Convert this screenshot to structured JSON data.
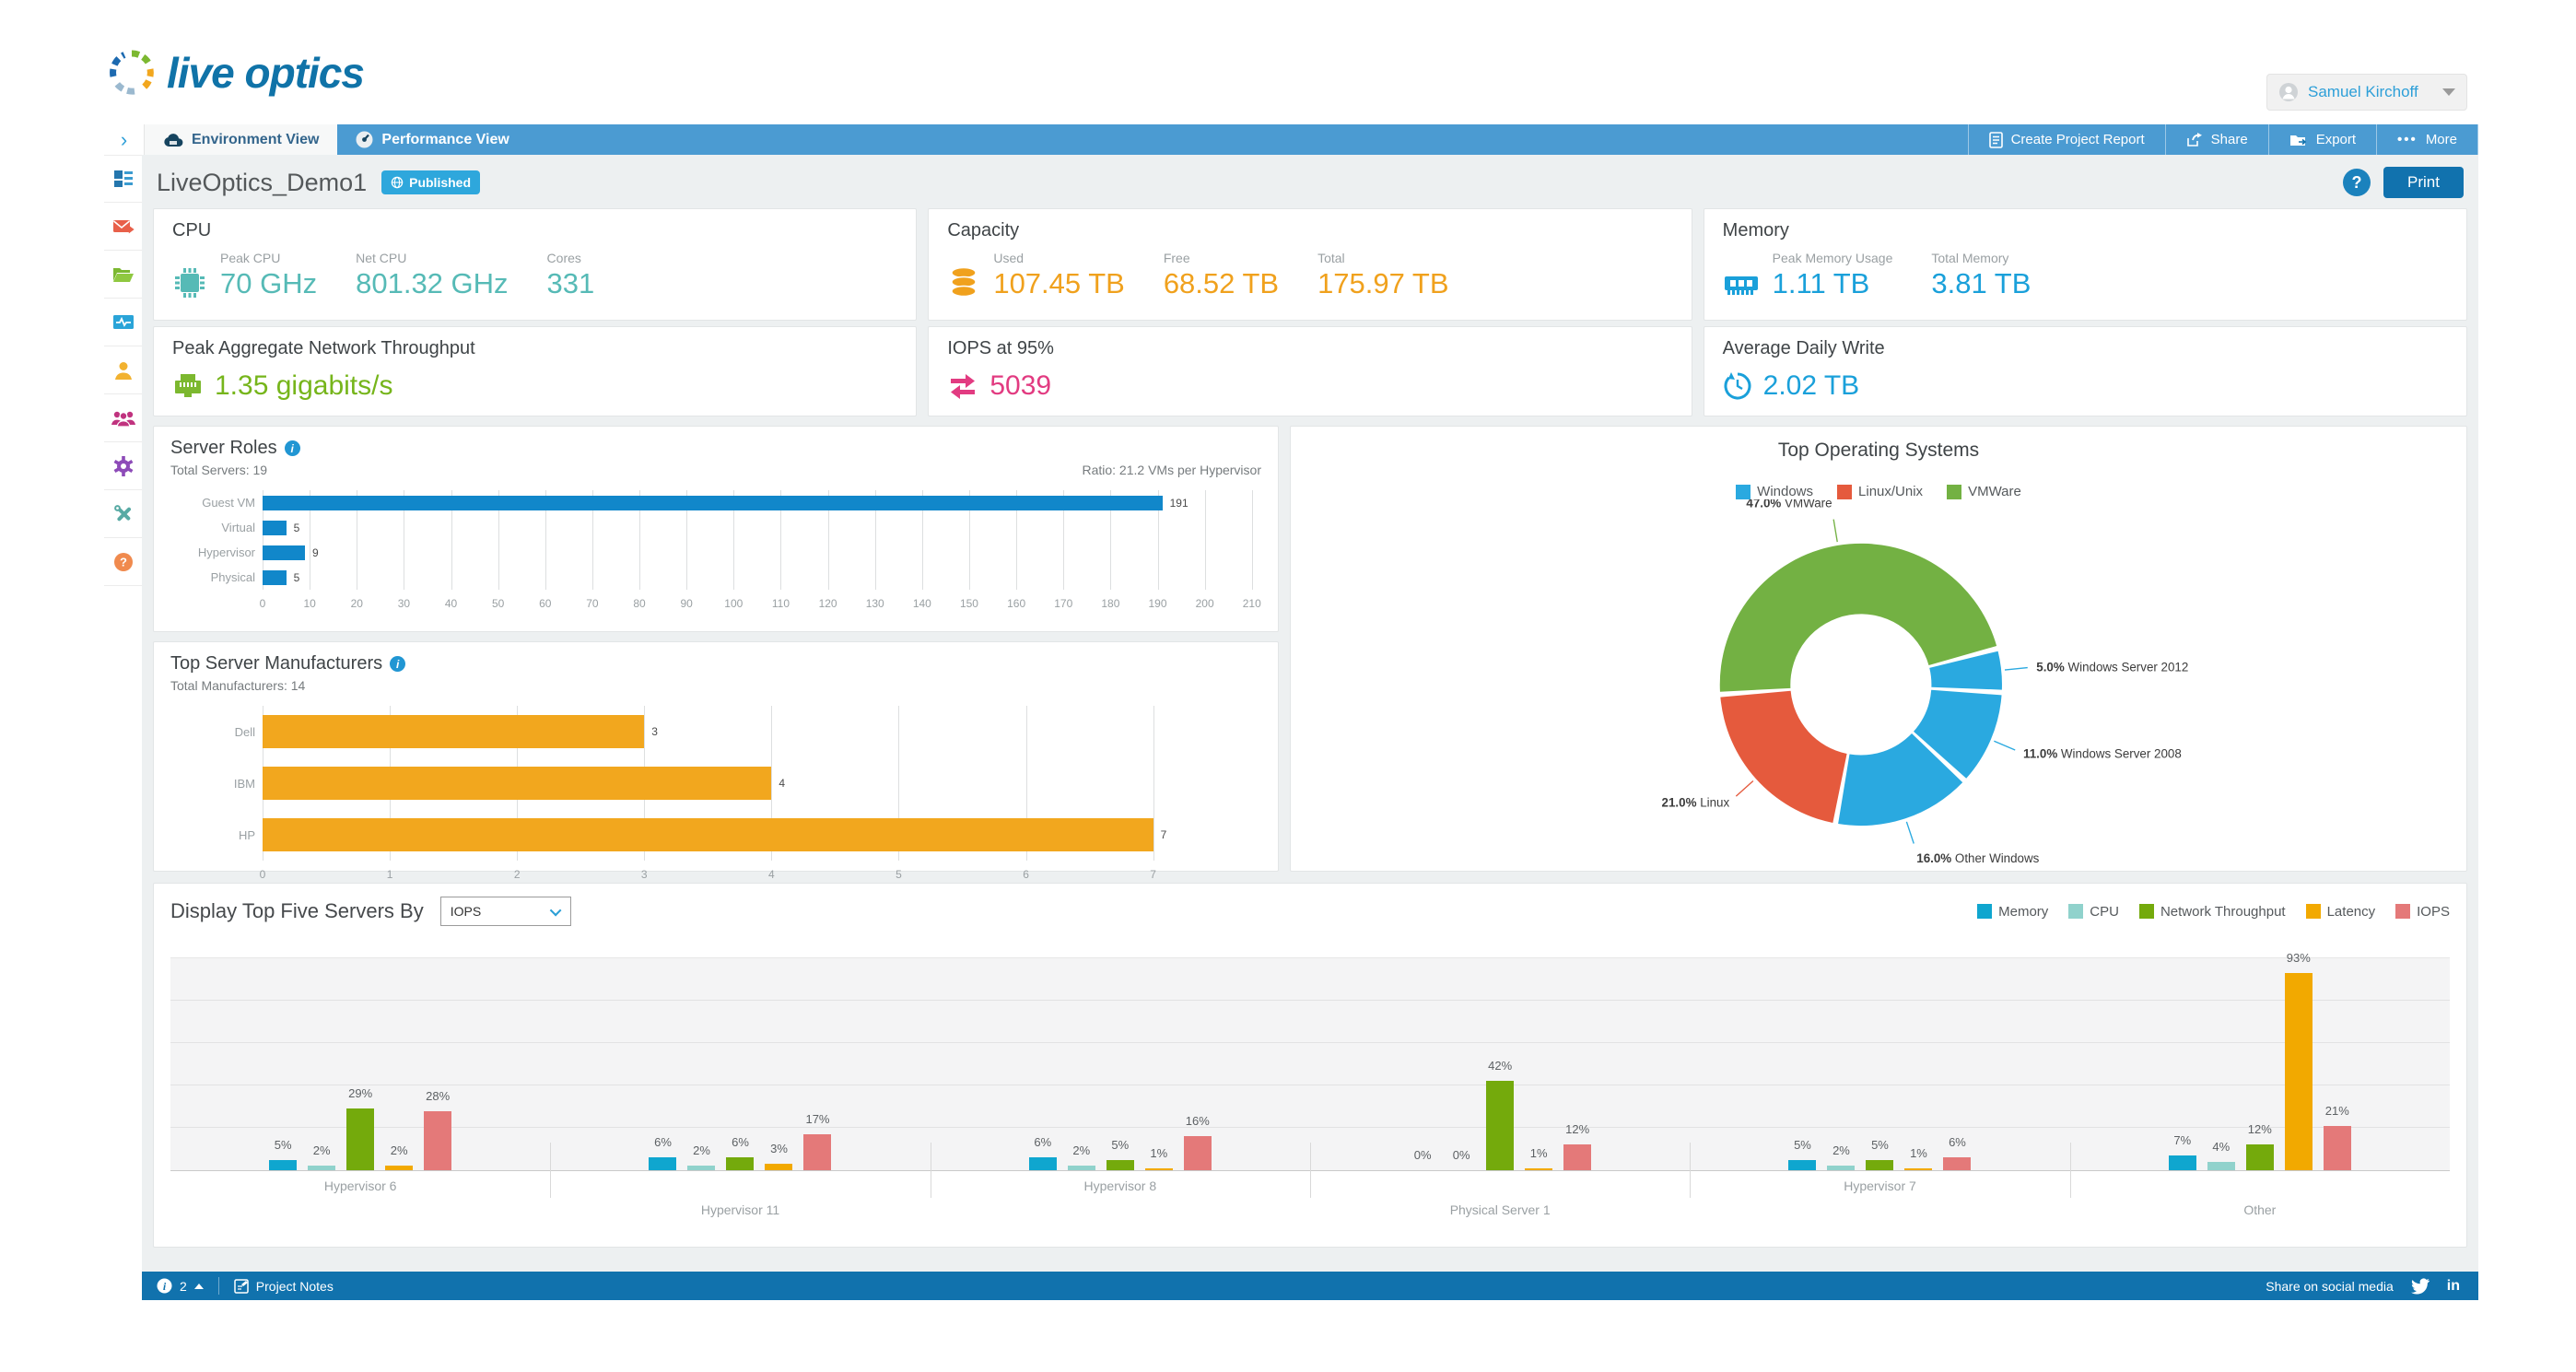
{
  "header": {
    "brand": "live optics",
    "user_name": "Samuel Kirchoff"
  },
  "tabbar": {
    "tabs": [
      {
        "label": "Environment View"
      },
      {
        "label": "Performance View"
      }
    ],
    "actions": [
      {
        "label": "Create Project Report"
      },
      {
        "label": "Share"
      },
      {
        "label": "Export"
      },
      {
        "label": "More"
      }
    ]
  },
  "titlebar": {
    "project_name": "LiveOptics_Demo1",
    "status": "Published",
    "help_label": "?",
    "print_label": "Print"
  },
  "sidebar": {
    "icons": [
      "dashboard",
      "mail",
      "projects-folder",
      "activity-monitor",
      "user",
      "team",
      "settings",
      "tools",
      "help"
    ]
  },
  "cards": {
    "cpu": {
      "title": "CPU",
      "metrics": [
        {
          "label": "Peak CPU",
          "value": "70 GHz"
        },
        {
          "label": "Net CPU",
          "value": "801.32 GHz"
        },
        {
          "label": "Cores",
          "value": "331"
        }
      ]
    },
    "capacity": {
      "title": "Capacity",
      "metrics": [
        {
          "label": "Used",
          "value": "107.45 TB"
        },
        {
          "label": "Free",
          "value": "68.52 TB"
        },
        {
          "label": "Total",
          "value": "175.97 TB"
        }
      ]
    },
    "memory": {
      "title": "Memory",
      "metrics": [
        {
          "label": "Peak Memory Usage",
          "value": "1.11 TB"
        },
        {
          "label": "Total Memory",
          "value": "3.81 TB"
        }
      ]
    },
    "network": {
      "title": "Peak Aggregate Network Throughput",
      "value": "1.35 gigabits/s"
    },
    "iops": {
      "title": "IOPS at 95%",
      "value": "5039"
    },
    "daily_write": {
      "title": "Average Daily Write",
      "value": "2.02 TB"
    }
  },
  "chart_data": [
    {
      "id": "server_roles",
      "type": "bar",
      "orientation": "horizontal",
      "title": "Server Roles",
      "subtitle_left": "Total Servers: 19",
      "subtitle_right": "Ratio: 21.2 VMs per Hypervisor",
      "categories": [
        "Guest VM",
        "Virtual",
        "Hypervisor",
        "Physical"
      ],
      "values": [
        191,
        5,
        9,
        5
      ],
      "color": "#1187ca",
      "xlim": [
        0,
        212
      ],
      "xticks": [
        0,
        10,
        20,
        30,
        40,
        50,
        60,
        70,
        80,
        90,
        100,
        110,
        120,
        130,
        140,
        150,
        160,
        170,
        180,
        190,
        200,
        210
      ],
      "grid": true
    },
    {
      "id": "top_manufacturers",
      "type": "bar",
      "orientation": "horizontal",
      "title": "Top Server Manufacturers",
      "subtitle_left": "Total Manufacturers: 14",
      "categories": [
        "Dell",
        "IBM",
        "HP"
      ],
      "values": [
        3,
        4,
        7
      ],
      "color": "#f2a71e",
      "xlim": [
        0,
        7.85
      ],
      "xticks": [
        0,
        1,
        2,
        3,
        4,
        5,
        6,
        7
      ],
      "grid": true
    },
    {
      "id": "top_operating_systems",
      "type": "pie",
      "title": "Top Operating Systems",
      "legend": [
        {
          "label": "Windows",
          "color": "#2aa9e0"
        },
        {
          "label": "Linux/Unix",
          "color": "#e55a3d"
        },
        {
          "label": "VMWare",
          "color": "#73b143"
        }
      ],
      "start_angle": -94,
      "slices": [
        {
          "pct": 47,
          "pct_label": "47.0%",
          "name": "VMWare",
          "color": "#73b143"
        },
        {
          "pct": 5,
          "pct_label": "5.0%",
          "name": "Windows Server 2012",
          "color": "#2aa9e0"
        },
        {
          "pct": 11,
          "pct_label": "11.0%",
          "name": "Windows Server 2008",
          "color": "#2aa9e0"
        },
        {
          "pct": 16,
          "pct_label": "16.0%",
          "name": "Other Windows",
          "color": "#2aa9e0"
        },
        {
          "pct": 21,
          "pct_label": "21.0%",
          "name": "Linux",
          "color": "#e55a3d"
        }
      ]
    },
    {
      "id": "top_five_servers",
      "type": "bar",
      "grouped": true,
      "selector_label": "Display Top Five Servers By",
      "selector_value": "IOPS",
      "categories": [
        "Hypervisor 6",
        "Hypervisor 11",
        "Hypervisor 8",
        "Physical Server 1",
        "Hypervisor 7",
        "Other"
      ],
      "series": [
        {
          "name": "Memory",
          "color": "#0fa6cf",
          "values": [
            5,
            6,
            6,
            0,
            5,
            7
          ]
        },
        {
          "name": "CPU",
          "color": "#90d2cc",
          "values": [
            2,
            2,
            2,
            0,
            2,
            4
          ]
        },
        {
          "name": "Network Throughput",
          "color": "#74aa0c",
          "values": [
            29,
            6,
            5,
            42,
            5,
            12
          ]
        },
        {
          "name": "Latency",
          "color": "#f2a900",
          "values": [
            2,
            3,
            1,
            1,
            1,
            93
          ]
        },
        {
          "name": "IOPS",
          "color": "#e47979",
          "values": [
            28,
            17,
            16,
            12,
            6,
            21
          ]
        }
      ],
      "unit": "%",
      "ylim": [
        0,
        100
      ],
      "gridlines_pct": [
        20,
        40,
        60,
        80
      ]
    }
  ],
  "footer": {
    "info_count": "2",
    "notes_label": "Project Notes",
    "share_label": "Share on social media"
  }
}
